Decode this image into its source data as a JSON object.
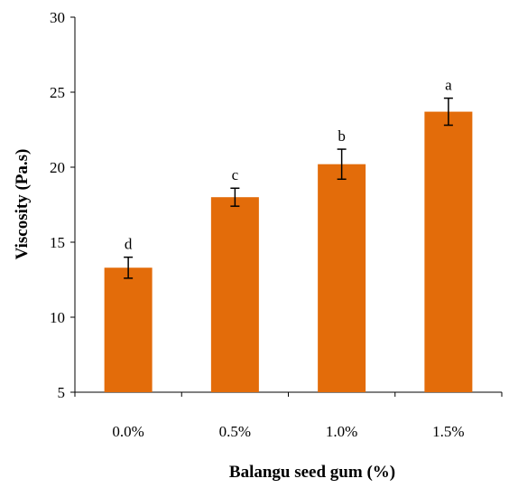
{
  "chart_data": {
    "type": "bar",
    "xlabel": "Balangu seed gum (%)",
    "ylabel": "Viscosity (Pa.s)",
    "categories": [
      "0.0%",
      "0.5%",
      "1.0%",
      "1.5%"
    ],
    "values": [
      13.3,
      18.0,
      20.2,
      23.7
    ],
    "errors": [
      0.7,
      0.6,
      1.0,
      0.9
    ],
    "letters": [
      "d",
      "c",
      "b",
      "a"
    ],
    "ylim": [
      5,
      30
    ],
    "yticks": [
      "5",
      "10",
      "15",
      "20",
      "25",
      "30"
    ],
    "grid": false,
    "bar_color": "#E36C0A"
  }
}
